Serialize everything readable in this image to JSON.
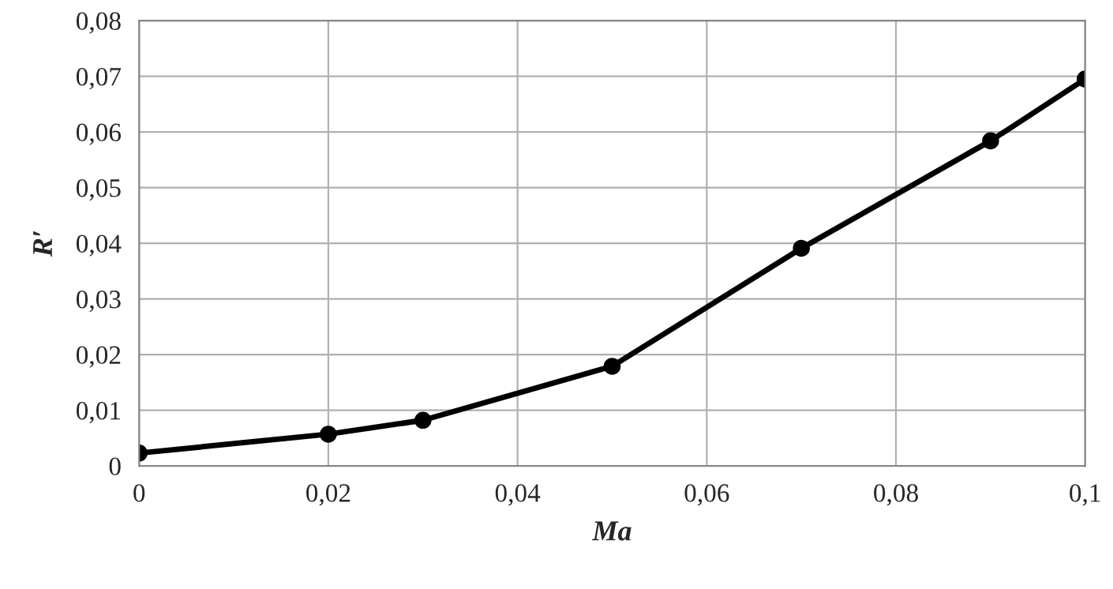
{
  "chart_data": {
    "type": "line",
    "xlabel": "Ma",
    "ylabel": "R′",
    "x": [
      0,
      0.02,
      0.03,
      0.05,
      0.07,
      0.09,
      0.1
    ],
    "series": [
      {
        "color": "#000000",
        "values": [
          0.0023,
          0.0057,
          0.0082,
          0.0179,
          0.0391,
          0.0584,
          0.0695
        ]
      }
    ],
    "xlim": [
      0,
      0.1
    ],
    "ylim": [
      0,
      0.08
    ],
    "xticks": [
      0,
      {
        "value": 0.02,
        "label": "0,02"
      },
      {
        "value": 0.04,
        "label": "0,04"
      },
      {
        "value": 0.06,
        "label": "0,06"
      },
      {
        "value": 0.08,
        "label": "0,08"
      },
      {
        "value": 0.1,
        "label": "0,1"
      }
    ],
    "yticks": [
      0,
      {
        "value": 0.01,
        "label": "0,01"
      },
      {
        "value": 0.02,
        "label": "0,02"
      },
      {
        "value": 0.03,
        "label": "0,03"
      },
      {
        "value": 0.04,
        "label": "0,04"
      },
      {
        "value": 0.05,
        "label": "0,05"
      },
      {
        "value": 0.06,
        "label": "0,06"
      },
      {
        "value": 0.07,
        "label": "0,07"
      },
      {
        "value": 0.08,
        "label": "0,08"
      }
    ],
    "grid": true,
    "marker": "circle",
    "line_style": "solid"
  }
}
